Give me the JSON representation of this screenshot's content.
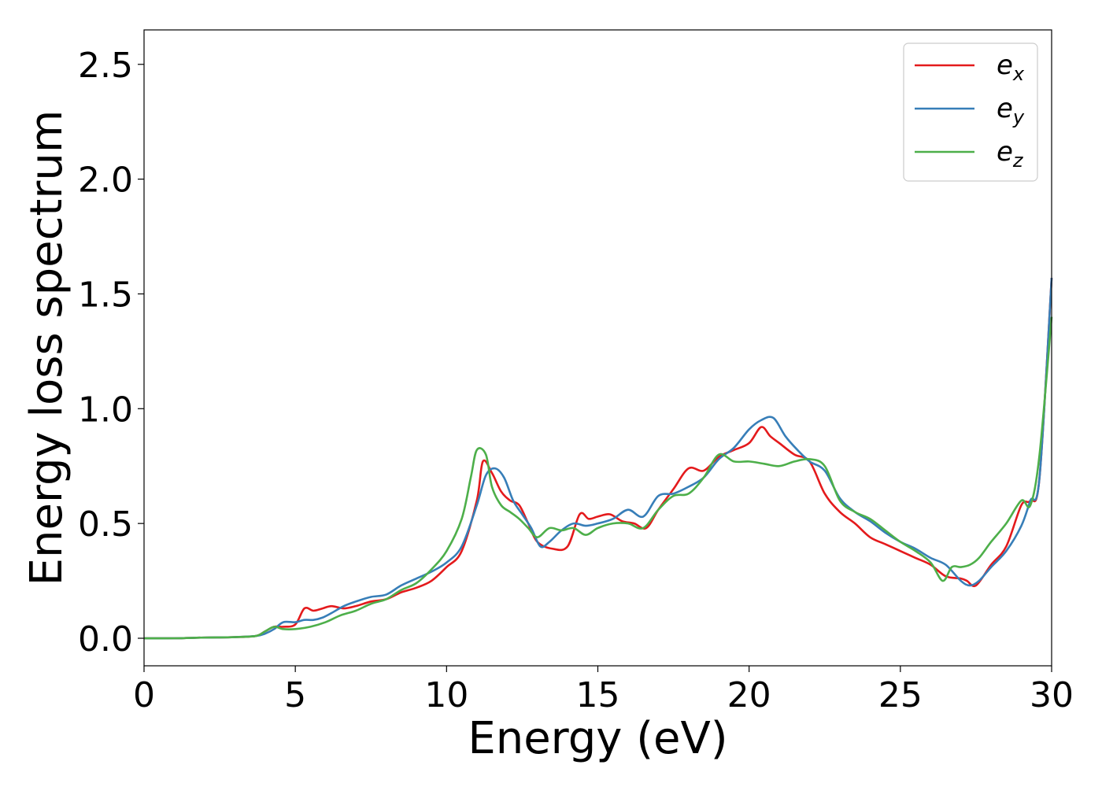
{
  "chart_data": {
    "type": "line",
    "title": "",
    "xlabel": "Energy (eV)",
    "ylabel": "Energy loss spectrum",
    "xlim": [
      0,
      30
    ],
    "ylim": [
      -0.12,
      2.65
    ],
    "xticks": [
      0,
      5,
      10,
      15,
      20,
      25,
      30
    ],
    "xtick_labels": [
      "0",
      "5",
      "10",
      "15",
      "20",
      "25",
      "30"
    ],
    "yticks": [
      0.0,
      0.5,
      1.0,
      1.5,
      2.0,
      2.5
    ],
    "ytick_labels": [
      "0.0",
      "0.5",
      "1.0",
      "1.5",
      "2.0",
      "2.5"
    ],
    "grid": false,
    "legend_position": "top-right",
    "series": [
      {
        "name": "e",
        "name_subscript": "x",
        "color": "#e41a1c",
        "x": [
          0,
          1,
          2,
          3,
          3.7,
          4,
          4.3,
          4.6,
          5.0,
          5.3,
          5.6,
          5.9,
          6.2,
          6.6,
          7.0,
          7.5,
          8.0,
          8.5,
          9.0,
          9.5,
          10.0,
          10.5,
          11.0,
          11.2,
          11.5,
          11.8,
          12.1,
          12.4,
          12.7,
          13.0,
          13.5,
          14.0,
          14.4,
          14.7,
          15.0,
          15.4,
          15.8,
          16.2,
          16.6,
          17.0,
          17.5,
          18.0,
          18.5,
          19.0,
          19.5,
          20.0,
          20.4,
          20.7,
          21.0,
          21.5,
          22.0,
          22.5,
          23.0,
          23.5,
          24.0,
          24.5,
          25.0,
          25.5,
          26.0,
          26.5,
          27.0,
          27.2,
          27.5,
          28.0,
          28.5,
          29.0,
          29.3,
          29.6,
          30.0
        ],
        "y": [
          0.0,
          0.0,
          0.003,
          0.005,
          0.01,
          0.03,
          0.05,
          0.05,
          0.06,
          0.13,
          0.12,
          0.13,
          0.14,
          0.13,
          0.14,
          0.16,
          0.17,
          0.2,
          0.22,
          0.25,
          0.31,
          0.38,
          0.6,
          0.77,
          0.72,
          0.64,
          0.6,
          0.58,
          0.5,
          0.42,
          0.39,
          0.4,
          0.54,
          0.52,
          0.53,
          0.54,
          0.51,
          0.5,
          0.48,
          0.56,
          0.65,
          0.74,
          0.73,
          0.79,
          0.82,
          0.85,
          0.92,
          0.88,
          0.85,
          0.8,
          0.77,
          0.63,
          0.55,
          0.5,
          0.44,
          0.41,
          0.38,
          0.35,
          0.32,
          0.27,
          0.26,
          0.25,
          0.23,
          0.32,
          0.4,
          0.58,
          0.6,
          0.7,
          1.57
        ]
      },
      {
        "name": "e",
        "name_subscript": "y",
        "color": "#377eb8",
        "x": [
          0,
          1,
          2,
          3,
          3.7,
          4,
          4.3,
          4.6,
          5.0,
          5.3,
          5.6,
          5.9,
          6.2,
          6.6,
          7.0,
          7.5,
          8.0,
          8.5,
          9.0,
          9.5,
          10.0,
          10.5,
          11.0,
          11.3,
          11.6,
          11.9,
          12.2,
          12.5,
          12.8,
          13.1,
          13.4,
          13.8,
          14.2,
          14.6,
          15.0,
          15.5,
          16.0,
          16.5,
          17.0,
          17.5,
          18.0,
          18.5,
          19.0,
          19.5,
          20.0,
          20.4,
          20.8,
          21.2,
          21.6,
          22.0,
          22.5,
          23.0,
          23.5,
          24.0,
          24.5,
          25.0,
          25.5,
          26.0,
          26.5,
          27.0,
          27.3,
          27.6,
          28.0,
          28.5,
          29.0,
          29.3,
          29.6,
          30.0
        ],
        "y": [
          0.0,
          0.0,
          0.003,
          0.005,
          0.01,
          0.02,
          0.04,
          0.07,
          0.07,
          0.08,
          0.08,
          0.09,
          0.11,
          0.14,
          0.16,
          0.18,
          0.19,
          0.23,
          0.26,
          0.29,
          0.33,
          0.4,
          0.58,
          0.71,
          0.74,
          0.7,
          0.6,
          0.54,
          0.48,
          0.4,
          0.42,
          0.47,
          0.5,
          0.49,
          0.5,
          0.52,
          0.56,
          0.53,
          0.62,
          0.63,
          0.66,
          0.7,
          0.78,
          0.83,
          0.91,
          0.95,
          0.96,
          0.88,
          0.82,
          0.77,
          0.73,
          0.61,
          0.55,
          0.51,
          0.46,
          0.42,
          0.39,
          0.35,
          0.32,
          0.25,
          0.23,
          0.25,
          0.31,
          0.38,
          0.49,
          0.6,
          0.7,
          1.57
        ]
      },
      {
        "name": "e",
        "name_subscript": "z",
        "color": "#4daf4a",
        "x": [
          0,
          1,
          2,
          3,
          3.7,
          4.0,
          4.3,
          4.6,
          5.0,
          5.5,
          6.0,
          6.5,
          7.0,
          7.5,
          8.0,
          8.5,
          9.0,
          9.5,
          10.0,
          10.5,
          10.8,
          11.0,
          11.3,
          11.5,
          11.8,
          12.1,
          12.4,
          12.7,
          13.0,
          13.4,
          13.8,
          14.2,
          14.6,
          15.0,
          15.5,
          16.0,
          16.5,
          17.0,
          17.5,
          18.0,
          18.5,
          19.0,
          19.5,
          20.0,
          20.5,
          21.0,
          21.5,
          22.0,
          22.5,
          23.0,
          23.5,
          24.0,
          24.5,
          25.0,
          25.5,
          26.0,
          26.4,
          26.7,
          27.0,
          27.3,
          27.6,
          28.0,
          28.5,
          29.0,
          29.3,
          29.6,
          30.0
        ],
        "y": [
          0.0,
          0.0,
          0.003,
          0.005,
          0.01,
          0.03,
          0.05,
          0.04,
          0.04,
          0.05,
          0.07,
          0.1,
          0.12,
          0.15,
          0.17,
          0.21,
          0.24,
          0.3,
          0.38,
          0.52,
          0.7,
          0.82,
          0.8,
          0.66,
          0.58,
          0.55,
          0.52,
          0.48,
          0.44,
          0.48,
          0.47,
          0.48,
          0.45,
          0.48,
          0.5,
          0.5,
          0.48,
          0.56,
          0.62,
          0.63,
          0.7,
          0.8,
          0.77,
          0.77,
          0.76,
          0.75,
          0.77,
          0.78,
          0.75,
          0.6,
          0.55,
          0.52,
          0.47,
          0.42,
          0.38,
          0.33,
          0.25,
          0.31,
          0.31,
          0.32,
          0.35,
          0.42,
          0.5,
          0.6,
          0.58,
          0.8,
          1.4
        ]
      }
    ]
  }
}
